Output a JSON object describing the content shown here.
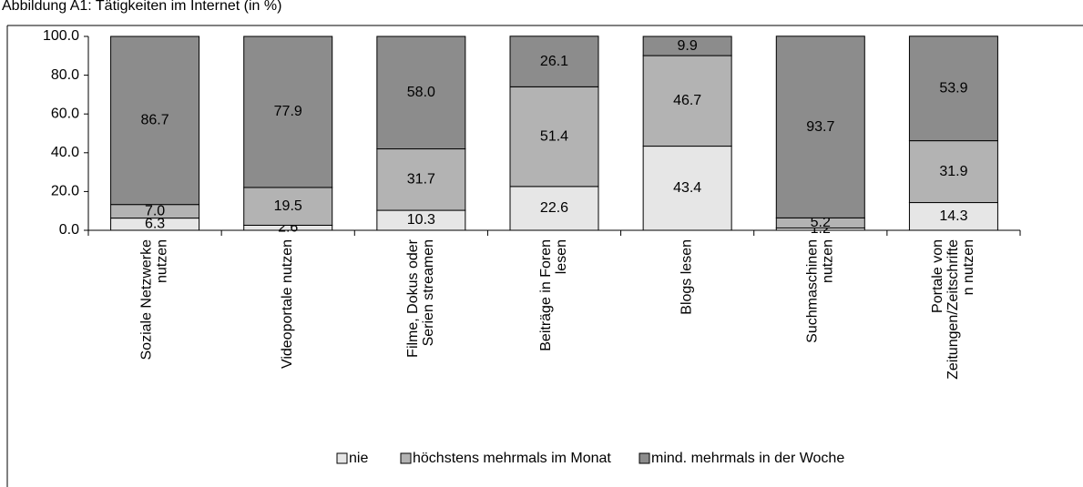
{
  "chart_data": {
    "type": "stacked_bar",
    "title": "Abbildung A1: Tätigkeiten im Internet (in %)",
    "categories": [
      "Soziale Netzwerke\nnutzen",
      "Videoportale nutzen",
      "Filme, Dokus oder\nSerien streamen",
      "Beiträge in Foren\nlesen",
      "Blogs lesen",
      "Suchmaschinen\nnutzen",
      "Portale von\nZeitungen/Zeitschrifte\nn nutzen"
    ],
    "series": [
      {
        "name": "nie",
        "color": "#e6e6e6",
        "values": [
          6.3,
          2.6,
          10.3,
          22.6,
          43.4,
          1.2,
          14.3
        ],
        "value_labels": [
          "6.3",
          "2.6",
          "10.3",
          "22.6",
          "43.4",
          "1.2",
          "14.3"
        ]
      },
      {
        "name": "höchstens mehrmals im Monat",
        "color": "#b3b3b3",
        "values": [
          7.0,
          19.5,
          31.7,
          51.4,
          46.7,
          5.2,
          31.9
        ],
        "value_labels": [
          "7.0",
          "19.5",
          "31.7",
          "51.4",
          "46.7",
          "5.2",
          "31.9"
        ]
      },
      {
        "name": "mind. mehrmals in der Woche",
        "color": "#8c8c8c",
        "values": [
          86.7,
          77.9,
          58.0,
          26.1,
          9.9,
          93.7,
          53.9
        ],
        "value_labels": [
          "86.7",
          "77.9",
          "58.0",
          "26.1",
          "9.9",
          "93.7",
          "53.9"
        ]
      }
    ],
    "ylim": [
      0,
      100
    ],
    "yticks": [
      {
        "value": 0,
        "label": "0.0"
      },
      {
        "value": 20,
        "label": "20.0"
      },
      {
        "value": 40,
        "label": "40.0"
      },
      {
        "value": 60,
        "label": "60.0"
      },
      {
        "value": 80,
        "label": "80.0"
      },
      {
        "value": 100,
        "label": "100.0"
      }
    ],
    "legend": "bottom"
  }
}
